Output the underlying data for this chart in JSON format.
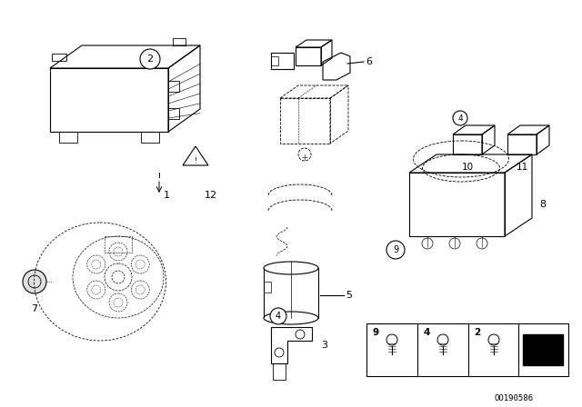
{
  "bg_color": "#ffffff",
  "line_color": "#000000",
  "fig_width": 6.4,
  "fig_height": 4.48,
  "dpi": 100,
  "footnote_text": "OO190586"
}
